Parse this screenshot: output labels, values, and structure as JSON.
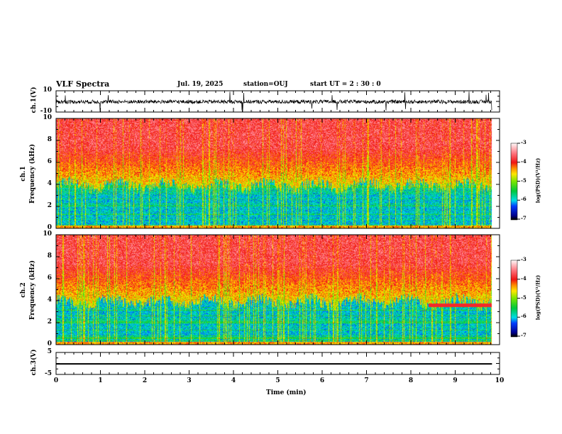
{
  "header": {
    "title": "VLF Spectra",
    "date": "Jul. 19, 2025",
    "station": "station=OUJ",
    "start_ut": "start  UT =   2 : 30 : 0"
  },
  "chart_data": [
    {
      "type": "line",
      "name": "ch1 waveform",
      "ylabel": "ch.1(V)",
      "ylim": [
        -10,
        10
      ],
      "yticks": [
        "10",
        "-10"
      ],
      "xlim": [
        0,
        10
      ],
      "description_values": {
        "baseline": 0
      }
    },
    {
      "type": "heatmap",
      "name": "ch1 spectrogram",
      "ylabel": "ch.1\nFrequency (kHz)",
      "ylabel_channel": "ch.1",
      "ylabel_freq": "Frequency (kHz)",
      "ylim": [
        0,
        10
      ],
      "yticks": [
        "0",
        "2",
        "4",
        "6",
        "8",
        "10"
      ],
      "xlim": [
        0,
        10
      ],
      "colorbar": {
        "label": "log(PSD)(V²/Hz)",
        "range": [
          -7,
          -3
        ],
        "ticks": [
          "-3",
          "-4",
          "-5",
          "-6",
          "-7"
        ]
      }
    },
    {
      "type": "heatmap",
      "name": "ch2 spectrogram",
      "ylabel_channel": "ch.2",
      "ylabel_freq": "Frequency (kHz)",
      "ylim": [
        0,
        10
      ],
      "yticks": [
        "0",
        "2",
        "4",
        "6",
        "8",
        "10"
      ],
      "xlim": [
        0,
        10
      ],
      "colorbar": {
        "label": "log(PSD)(V²/Hz)",
        "range": [
          -7,
          -3
        ],
        "ticks": [
          "-3",
          "-4",
          "-5",
          "-6",
          "-7"
        ]
      }
    },
    {
      "type": "line",
      "name": "ch3 waveform",
      "ylabel": "ch.3(V)",
      "ylim": [
        -5,
        5
      ],
      "yticks": [
        "5",
        "-5"
      ],
      "xlim": [
        0,
        10
      ],
      "values_constant": -0.2
    }
  ],
  "xaxis": {
    "label": "Time (min)",
    "ticks": [
      "0",
      "1",
      "2",
      "3",
      "4",
      "5",
      "6",
      "7",
      "8",
      "9",
      "10"
    ],
    "data_end": 9.83
  }
}
